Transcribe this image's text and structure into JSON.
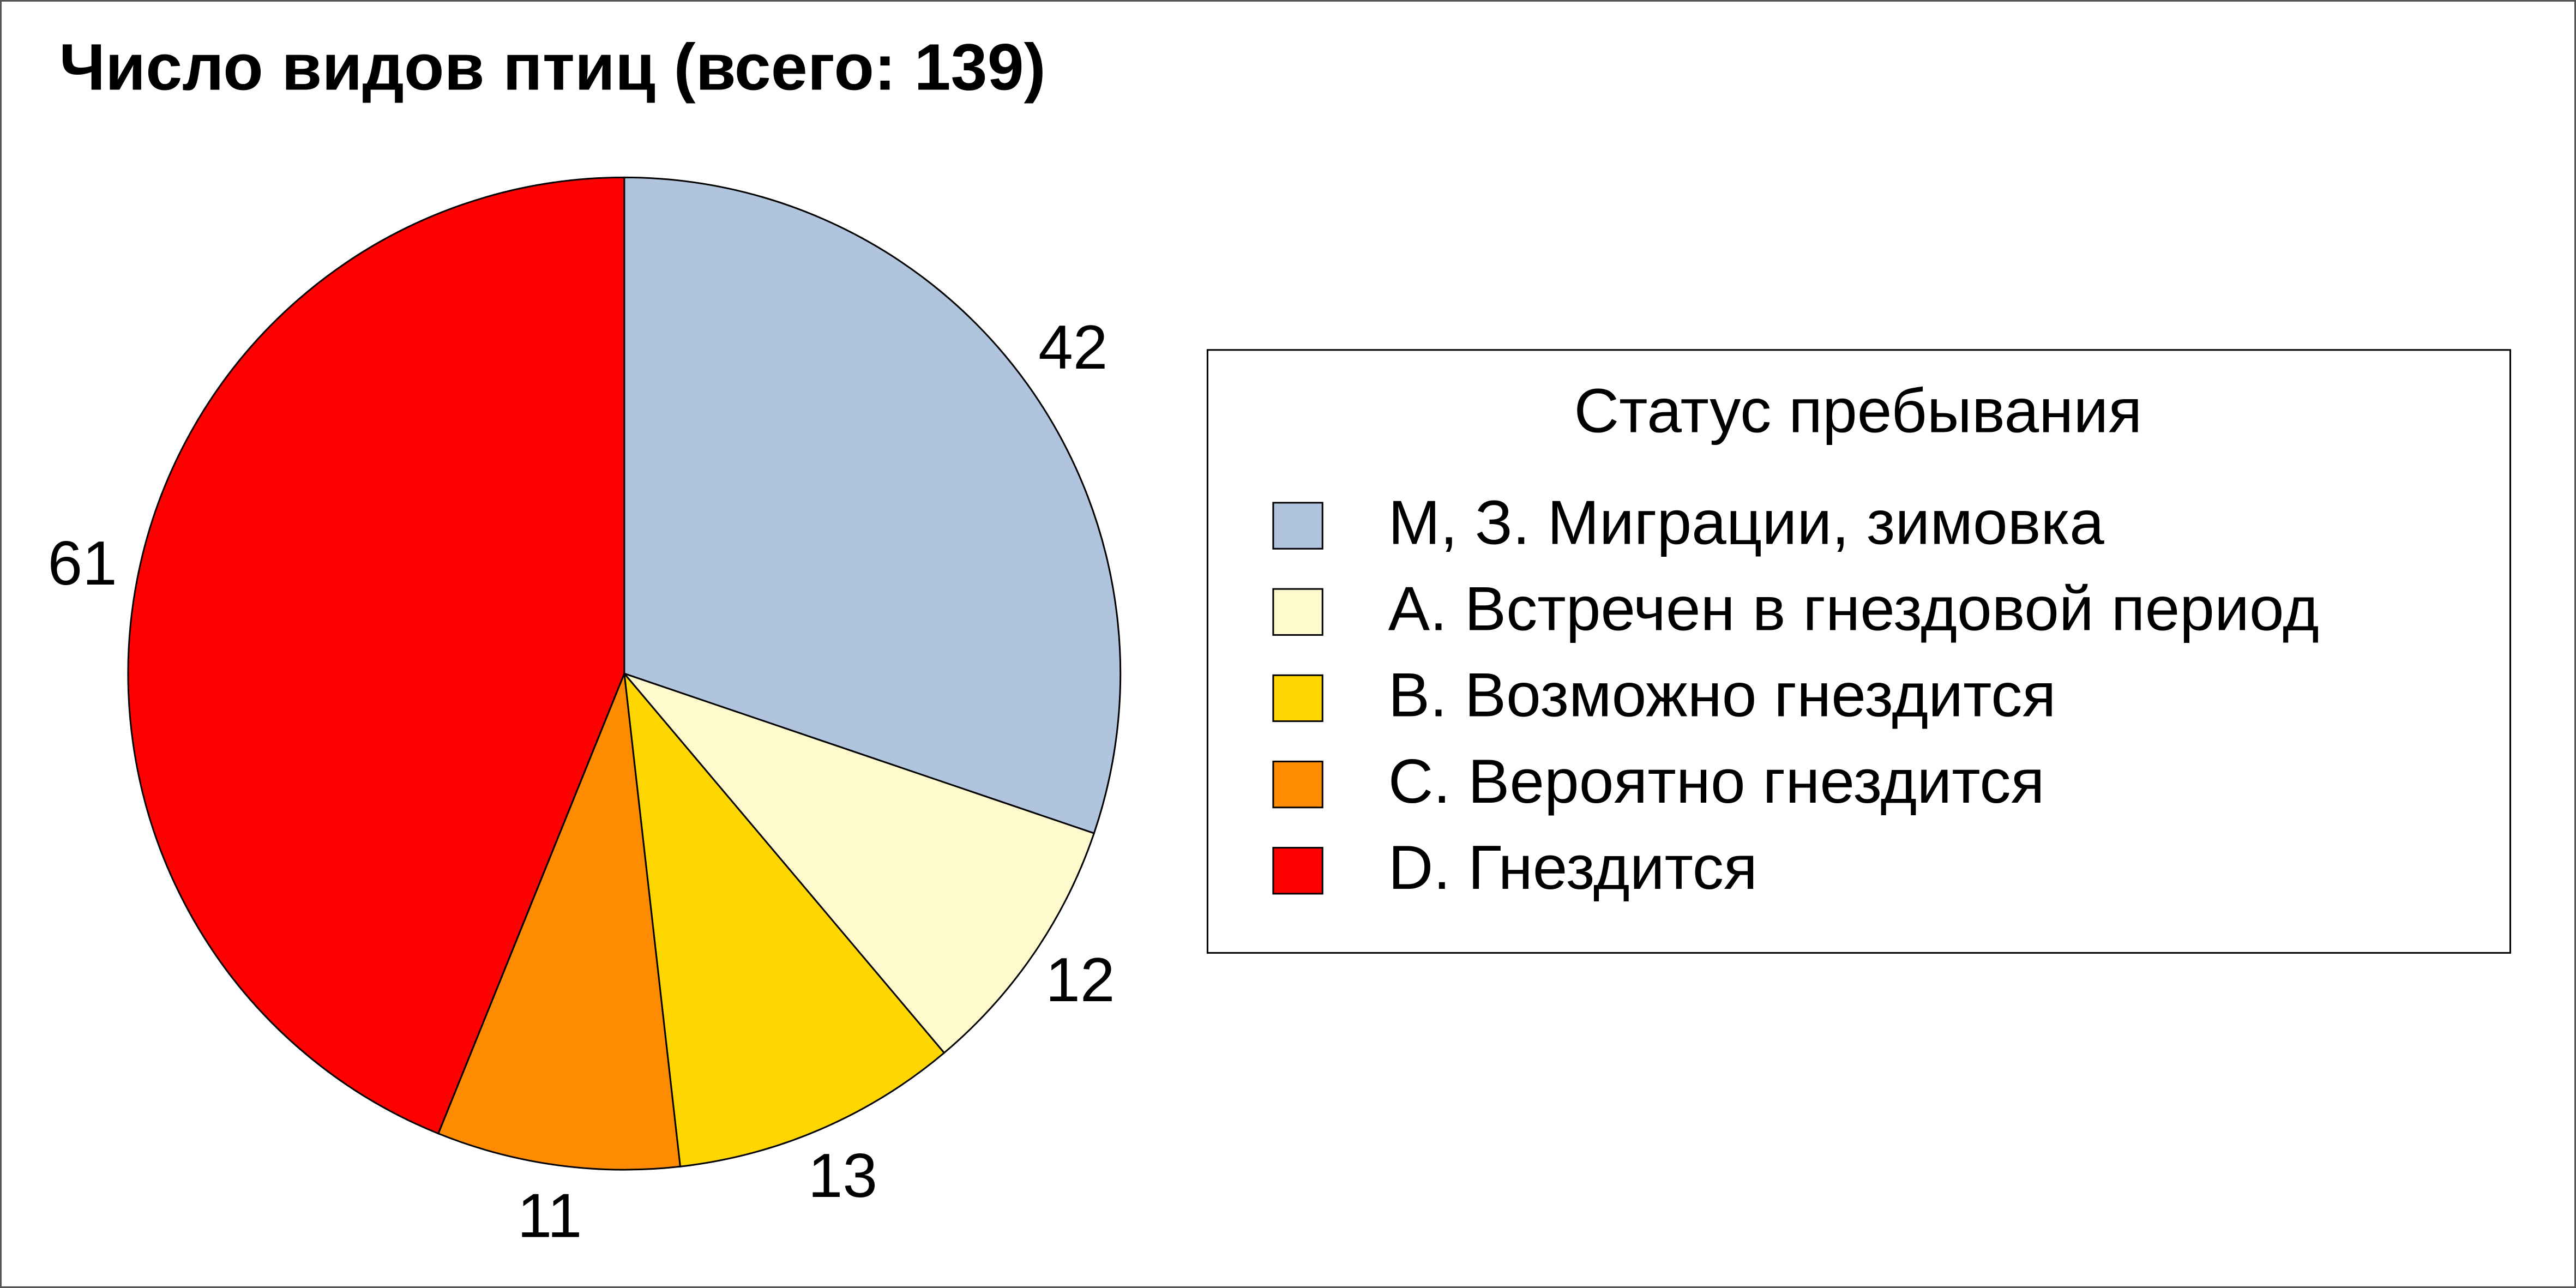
{
  "chart_data": {
    "type": "pie",
    "title": "Число видов птиц (всего: 139)",
    "legend_title": "Статус пребывания",
    "categories": [
      "М, З. Миграции, зимовка",
      "А. Встречен в гнездовой период",
      "В. Возможно гнездится",
      "С. Вероятно гнездится",
      "D. Гнездится"
    ],
    "values": [
      42,
      12,
      13,
      11,
      61
    ],
    "colors": [
      "#b0c4de",
      "#fffacd",
      "#ffd700",
      "#ff8c00",
      "#ff0000"
    ],
    "legend": "right"
  }
}
